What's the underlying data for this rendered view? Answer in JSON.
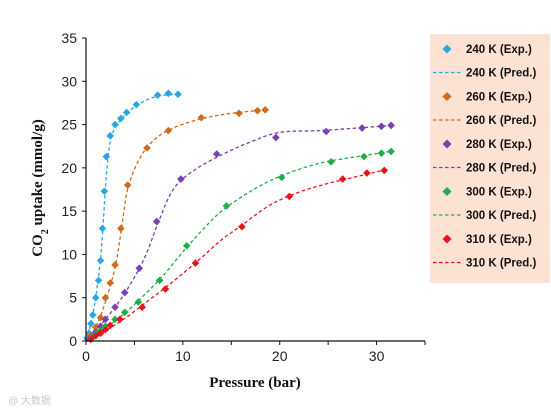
{
  "chart_data": {
    "type": "scatter",
    "xlabel": "Pressure (bar)",
    "ylabel_main": "CO",
    "ylabel_sub": "2",
    "ylabel_rest": " uptake (mmol/g)",
    "xlim": [
      0,
      35
    ],
    "ylim": [
      0,
      35
    ],
    "xticks": [
      "0",
      "10",
      "20",
      "30"
    ],
    "yticks": [
      "0",
      "5",
      "10",
      "15",
      "20",
      "25",
      "30",
      "35"
    ],
    "grid": false,
    "legend_placement": "right",
    "series": [
      {
        "exp_name": "240 K (Exp.)",
        "pred_name": "240 K (Pred.)",
        "color": "#29a8e0",
        "exp": [
          [
            0.1,
            0.3
          ],
          [
            0.3,
            0.9
          ],
          [
            0.5,
            2
          ],
          [
            0.7,
            3
          ],
          [
            1.0,
            5
          ],
          [
            1.3,
            7
          ],
          [
            1.5,
            9.3
          ],
          [
            1.7,
            13
          ],
          [
            1.9,
            17.3
          ],
          [
            2.1,
            21.3
          ],
          [
            2.5,
            23.7
          ],
          [
            3.0,
            25
          ],
          [
            3.6,
            25.7
          ],
          [
            4.2,
            26.4
          ],
          [
            5.2,
            27.3
          ],
          [
            7.4,
            28.4
          ],
          [
            8.5,
            28.6
          ],
          [
            9.5,
            28.5
          ]
        ],
        "pred": [
          [
            0,
            0
          ],
          [
            0.5,
            2
          ],
          [
            1.0,
            5
          ],
          [
            1.5,
            9.5
          ],
          [
            1.8,
            14
          ],
          [
            2.1,
            19
          ],
          [
            2.5,
            23
          ],
          [
            3.2,
            25
          ],
          [
            4.5,
            26.6
          ],
          [
            6,
            27.7
          ],
          [
            7.5,
            28.3
          ],
          [
            9.6,
            28.5
          ]
        ]
      },
      {
        "exp_name": "260 K (Exp.)",
        "pred_name": "260 K (Pred.)",
        "color": "#d06a1c",
        "exp": [
          [
            0.5,
            0.7
          ],
          [
            1.0,
            1.6
          ],
          [
            1.5,
            2.7
          ],
          [
            2.0,
            5
          ],
          [
            2.5,
            6.7
          ],
          [
            3.0,
            8.8
          ],
          [
            3.6,
            13
          ],
          [
            4.3,
            18
          ],
          [
            6.3,
            22.3
          ],
          [
            8.5,
            24.3
          ],
          [
            11.9,
            25.8
          ],
          [
            15.8,
            26.3
          ],
          [
            17.7,
            26.6
          ],
          [
            18.5,
            26.7
          ]
        ],
        "pred": [
          [
            0,
            0
          ],
          [
            1.0,
            1.6
          ],
          [
            2.0,
            4.5
          ],
          [
            3.0,
            8.5
          ],
          [
            3.6,
            12.5
          ],
          [
            4.3,
            17.5
          ],
          [
            5.5,
            21
          ],
          [
            7,
            23.2
          ],
          [
            9,
            24.6
          ],
          [
            12,
            25.7
          ],
          [
            15,
            26.3
          ],
          [
            18.5,
            26.7
          ]
        ]
      },
      {
        "exp_name": "280 K (Exp.)",
        "pred_name": "280 K (Pred.)",
        "color": "#7a3fb0",
        "exp": [
          [
            0.5,
            0.4
          ],
          [
            1.0,
            1
          ],
          [
            1.5,
            1.7
          ],
          [
            2.0,
            2.5
          ],
          [
            3.0,
            3.9
          ],
          [
            4.0,
            5.6
          ],
          [
            5.5,
            8.4
          ],
          [
            7.3,
            13.8
          ],
          [
            9.8,
            18.7
          ],
          [
            13.5,
            21.6
          ],
          [
            19.6,
            23.5
          ],
          [
            24.8,
            24.2
          ],
          [
            28.5,
            24.6
          ],
          [
            30.5,
            24.8
          ],
          [
            31.5,
            24.9
          ]
        ],
        "pred": [
          [
            0,
            0
          ],
          [
            2.0,
            2.5
          ],
          [
            4,
            5.5
          ],
          [
            6,
            9.5
          ],
          [
            7.5,
            13.8
          ],
          [
            9,
            17.5
          ],
          [
            11,
            19.6
          ],
          [
            14,
            21.5
          ],
          [
            17,
            23
          ],
          [
            20,
            24.1
          ],
          [
            24,
            24.3
          ],
          [
            28,
            24.6
          ],
          [
            31.5,
            24.9
          ]
        ]
      },
      {
        "exp_name": "300 K (Exp.)",
        "pred_name": "300 K (Pred.)",
        "color": "#1fae4a",
        "exp": [
          [
            0.5,
            0.3
          ],
          [
            1.0,
            0.8
          ],
          [
            1.5,
            1.2
          ],
          [
            2.0,
            1.7
          ],
          [
            3.0,
            2.5
          ],
          [
            4.0,
            3.3
          ],
          [
            5.4,
            4.5
          ],
          [
            7.6,
            7
          ],
          [
            10.4,
            11
          ],
          [
            14.5,
            15.6
          ],
          [
            20.2,
            18.9
          ],
          [
            25.3,
            20.7
          ],
          [
            28.7,
            21.3
          ],
          [
            30.5,
            21.7
          ],
          [
            31.5,
            21.9
          ]
        ],
        "pred": [
          [
            0,
            0
          ],
          [
            2,
            1.5
          ],
          [
            4,
            3.2
          ],
          [
            6,
            5.3
          ],
          [
            8,
            7.6
          ],
          [
            10,
            10.3
          ],
          [
            12,
            12.8
          ],
          [
            14,
            15
          ],
          [
            17,
            17.3
          ],
          [
            20,
            19
          ],
          [
            24,
            20.5
          ],
          [
            28,
            21.3
          ],
          [
            31.5,
            21.9
          ]
        ]
      },
      {
        "exp_name": "310 K (Exp.)",
        "pred_name": "310 K (Pred.)",
        "color": "#e8141c",
        "exp": [
          [
            0.5,
            0.2
          ],
          [
            1.0,
            0.6
          ],
          [
            1.5,
            0.9
          ],
          [
            2.0,
            1.3
          ],
          [
            2.5,
            1.8
          ],
          [
            3.5,
            2.5
          ],
          [
            5.8,
            3.9
          ],
          [
            8.2,
            6
          ],
          [
            11.3,
            9
          ],
          [
            16.1,
            13.2
          ],
          [
            21,
            16.7
          ],
          [
            26.5,
            18.7
          ],
          [
            29,
            19.4
          ],
          [
            30.8,
            19.7
          ]
        ],
        "pred": [
          [
            0,
            0
          ],
          [
            2,
            1.2
          ],
          [
            4,
            2.6
          ],
          [
            6,
            4.3
          ],
          [
            8,
            6
          ],
          [
            10,
            7.8
          ],
          [
            12,
            9.7
          ],
          [
            14,
            11.7
          ],
          [
            16,
            13.3
          ],
          [
            19,
            15.7
          ],
          [
            22,
            17.2
          ],
          [
            25,
            18.2
          ],
          [
            28,
            19
          ],
          [
            31,
            19.8
          ]
        ]
      }
    ]
  },
  "watermark": "@ 大数据"
}
